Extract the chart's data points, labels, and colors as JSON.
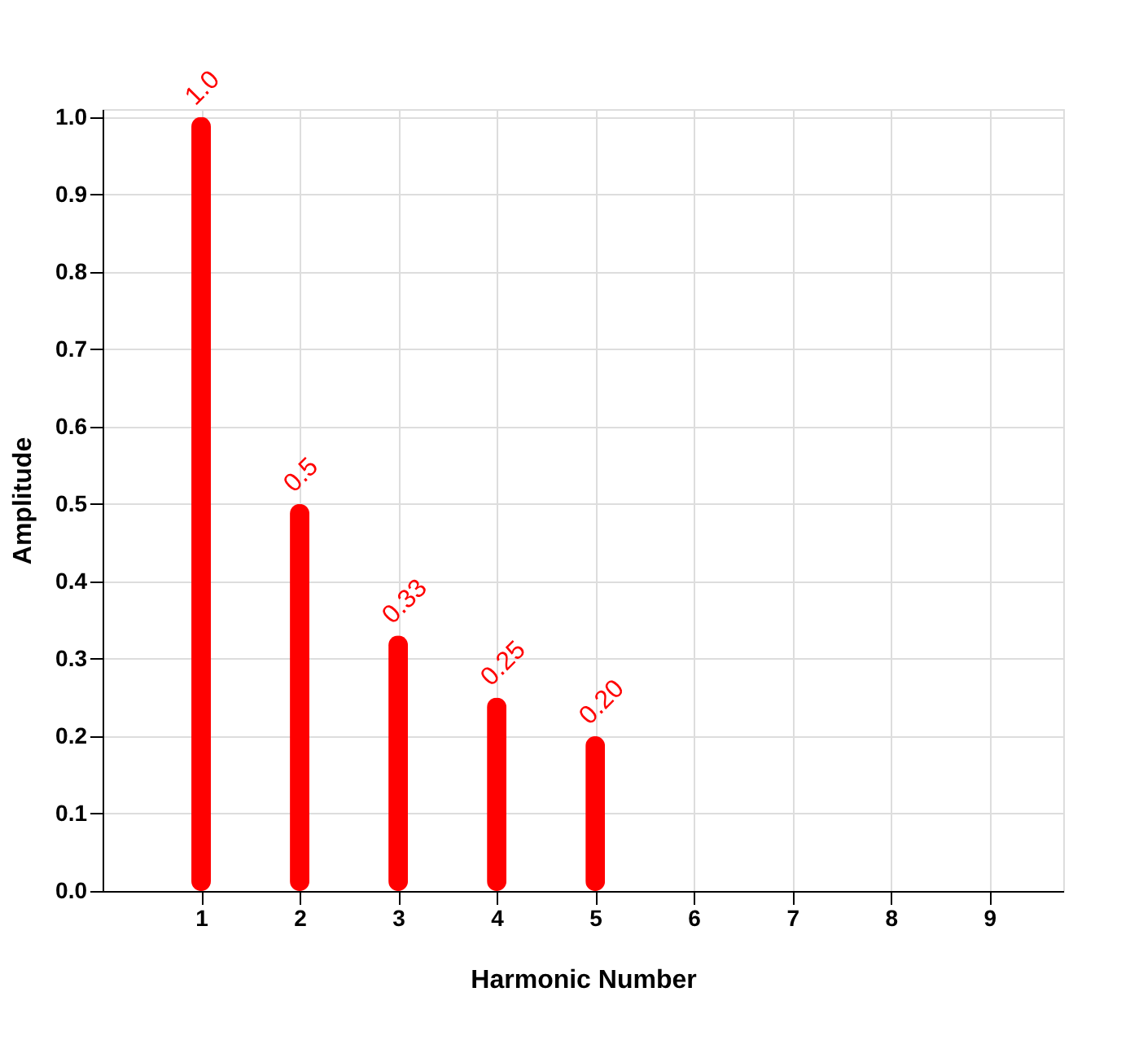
{
  "chart_data": {
    "type": "bar",
    "xlabel": "Harmonic Number",
    "ylabel": "Amplitude",
    "x": [
      1,
      2,
      3,
      4,
      5
    ],
    "series": [
      {
        "color": "#ff0000",
        "values": [
          1.0,
          0.5,
          0.33,
          0.25,
          0.2
        ],
        "value_labels": [
          "1.0",
          "0.5",
          "0.33",
          "0.25",
          "0.20"
        ]
      }
    ],
    "xlim": [
      0,
      9.75
    ],
    "xticks": [
      1,
      2,
      3,
      4,
      5,
      6,
      7,
      8,
      9
    ],
    "ylim": [
      0,
      1.01
    ],
    "yticks": [
      {
        "value": 0,
        "label": "0.0"
      },
      0.1,
      0.2,
      0.3,
      0.4,
      0.5,
      0.6,
      0.7,
      0.8,
      0.9,
      {
        "value": 1,
        "label": "1.0"
      }
    ],
    "grid": true
  }
}
